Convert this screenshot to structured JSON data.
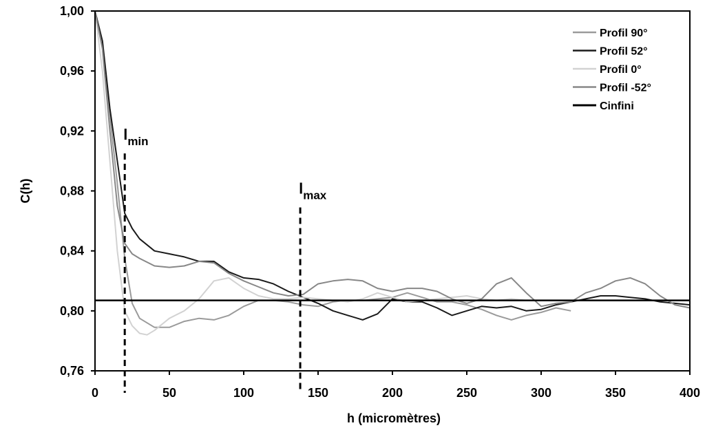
{
  "chart_data": {
    "type": "line",
    "xlabel": "h (micromètres)",
    "ylabel": "C(h)",
    "xlim": [
      0,
      400
    ],
    "ylim": [
      0.76,
      1.0
    ],
    "x_ticks": [
      0,
      50,
      100,
      150,
      200,
      250,
      300,
      350,
      400
    ],
    "x_tick_labels": [
      "0",
      "50",
      "100",
      "150",
      "200",
      "250",
      "300",
      "350",
      "400"
    ],
    "y_ticks": [
      0.76,
      0.8,
      0.84,
      0.88,
      0.92,
      0.96,
      1.0
    ],
    "y_tick_labels": [
      "0,76",
      "0,80",
      "0,84",
      "0,88",
      "0,92",
      "0,96",
      "1,00"
    ],
    "grid": false,
    "legend_position": "top-right",
    "series": [
      {
        "name": "Profil 90°",
        "color": "#9a9a9a",
        "points": [
          [
            0,
            1.0
          ],
          [
            5,
            0.975
          ],
          [
            10,
            0.93
          ],
          [
            15,
            0.885
          ],
          [
            20,
            0.835
          ],
          [
            25,
            0.805
          ],
          [
            30,
            0.795
          ],
          [
            40,
            0.789
          ],
          [
            50,
            0.789
          ],
          [
            60,
            0.793
          ],
          [
            70,
            0.795
          ],
          [
            80,
            0.794
          ],
          [
            90,
            0.797
          ],
          [
            100,
            0.803
          ],
          [
            110,
            0.807
          ],
          [
            120,
            0.807
          ],
          [
            130,
            0.806
          ],
          [
            140,
            0.804
          ],
          [
            150,
            0.803
          ],
          [
            160,
            0.806
          ],
          [
            170,
            0.807
          ],
          [
            180,
            0.807
          ],
          [
            190,
            0.808
          ],
          [
            200,
            0.809
          ],
          [
            210,
            0.812
          ],
          [
            220,
            0.809
          ],
          [
            230,
            0.806
          ],
          [
            240,
            0.806
          ],
          [
            250,
            0.804
          ],
          [
            260,
            0.801
          ],
          [
            270,
            0.797
          ],
          [
            280,
            0.794
          ],
          [
            290,
            0.797
          ],
          [
            300,
            0.799
          ],
          [
            310,
            0.802
          ],
          [
            320,
            0.8
          ]
        ]
      },
      {
        "name": "Profil 52°",
        "color": "#1a1a1a",
        "points": [
          [
            0,
            1.0
          ],
          [
            5,
            0.98
          ],
          [
            10,
            0.935
          ],
          [
            15,
            0.9
          ],
          [
            20,
            0.865
          ],
          [
            25,
            0.855
          ],
          [
            30,
            0.848
          ],
          [
            40,
            0.84
          ],
          [
            50,
            0.838
          ],
          [
            60,
            0.836
          ],
          [
            70,
            0.833
          ],
          [
            80,
            0.833
          ],
          [
            90,
            0.826
          ],
          [
            100,
            0.822
          ],
          [
            110,
            0.821
          ],
          [
            120,
            0.818
          ],
          [
            130,
            0.813
          ],
          [
            140,
            0.809
          ],
          [
            150,
            0.805
          ],
          [
            160,
            0.8
          ],
          [
            170,
            0.797
          ],
          [
            180,
            0.794
          ],
          [
            190,
            0.798
          ],
          [
            200,
            0.808
          ],
          [
            210,
            0.806
          ],
          [
            220,
            0.806
          ],
          [
            230,
            0.802
          ],
          [
            240,
            0.797
          ],
          [
            250,
            0.8
          ],
          [
            260,
            0.803
          ],
          [
            270,
            0.802
          ],
          [
            280,
            0.803
          ],
          [
            290,
            0.8
          ],
          [
            300,
            0.801
          ],
          [
            310,
            0.804
          ],
          [
            320,
            0.806
          ],
          [
            330,
            0.808
          ],
          [
            340,
            0.81
          ],
          [
            350,
            0.81
          ],
          [
            360,
            0.809
          ],
          [
            370,
            0.808
          ],
          [
            380,
            0.806
          ],
          [
            390,
            0.805
          ],
          [
            400,
            0.804
          ]
        ]
      },
      {
        "name": "Profil 0°",
        "color": "#d2d2d2",
        "points": [
          [
            0,
            1.0
          ],
          [
            5,
            0.96
          ],
          [
            10,
            0.9
          ],
          [
            15,
            0.84
          ],
          [
            20,
            0.8
          ],
          [
            25,
            0.79
          ],
          [
            30,
            0.785
          ],
          [
            35,
            0.784
          ],
          [
            40,
            0.787
          ],
          [
            50,
            0.795
          ],
          [
            60,
            0.8
          ],
          [
            70,
            0.808
          ],
          [
            80,
            0.82
          ],
          [
            90,
            0.822
          ],
          [
            100,
            0.815
          ],
          [
            110,
            0.81
          ],
          [
            120,
            0.808
          ],
          [
            130,
            0.808
          ],
          [
            140,
            0.809
          ],
          [
            150,
            0.808
          ],
          [
            160,
            0.807
          ],
          [
            170,
            0.806
          ],
          [
            180,
            0.808
          ],
          [
            190,
            0.812
          ],
          [
            200,
            0.809
          ],
          [
            210,
            0.806
          ],
          [
            220,
            0.807
          ],
          [
            230,
            0.808
          ],
          [
            240,
            0.809
          ],
          [
            250,
            0.81
          ],
          [
            260,
            0.808
          ],
          [
            270,
            0.807
          ],
          [
            280,
            0.808
          ],
          [
            290,
            0.807
          ],
          [
            300,
            0.807
          ]
        ]
      },
      {
        "name": "Profil -52°",
        "color": "#878787",
        "points": [
          [
            0,
            1.0
          ],
          [
            5,
            0.975
          ],
          [
            10,
            0.92
          ],
          [
            15,
            0.87
          ],
          [
            20,
            0.845
          ],
          [
            25,
            0.838
          ],
          [
            30,
            0.835
          ],
          [
            40,
            0.83
          ],
          [
            50,
            0.829
          ],
          [
            60,
            0.83
          ],
          [
            70,
            0.833
          ],
          [
            80,
            0.832
          ],
          [
            90,
            0.825
          ],
          [
            100,
            0.82
          ],
          [
            110,
            0.816
          ],
          [
            120,
            0.812
          ],
          [
            130,
            0.81
          ],
          [
            140,
            0.811
          ],
          [
            150,
            0.818
          ],
          [
            160,
            0.82
          ],
          [
            170,
            0.821
          ],
          [
            180,
            0.82
          ],
          [
            190,
            0.815
          ],
          [
            200,
            0.813
          ],
          [
            210,
            0.815
          ],
          [
            220,
            0.815
          ],
          [
            230,
            0.813
          ],
          [
            240,
            0.808
          ],
          [
            250,
            0.805
          ],
          [
            260,
            0.808
          ],
          [
            270,
            0.818
          ],
          [
            280,
            0.822
          ],
          [
            290,
            0.812
          ],
          [
            300,
            0.803
          ],
          [
            310,
            0.805
          ],
          [
            320,
            0.806
          ],
          [
            330,
            0.812
          ],
          [
            340,
            0.815
          ],
          [
            350,
            0.82
          ],
          [
            360,
            0.822
          ],
          [
            370,
            0.818
          ],
          [
            380,
            0.81
          ],
          [
            390,
            0.804
          ],
          [
            400,
            0.802
          ]
        ]
      },
      {
        "name": "Cinfini",
        "color": "#000000",
        "points": [
          [
            0,
            0.807
          ],
          [
            400,
            0.807
          ]
        ]
      }
    ],
    "annotations": [
      {
        "main": "l",
        "sub": "min",
        "x": 20,
        "y_top": 0.905
      },
      {
        "main": "l",
        "sub": "max",
        "x": 138,
        "y_top": 0.869
      }
    ]
  }
}
